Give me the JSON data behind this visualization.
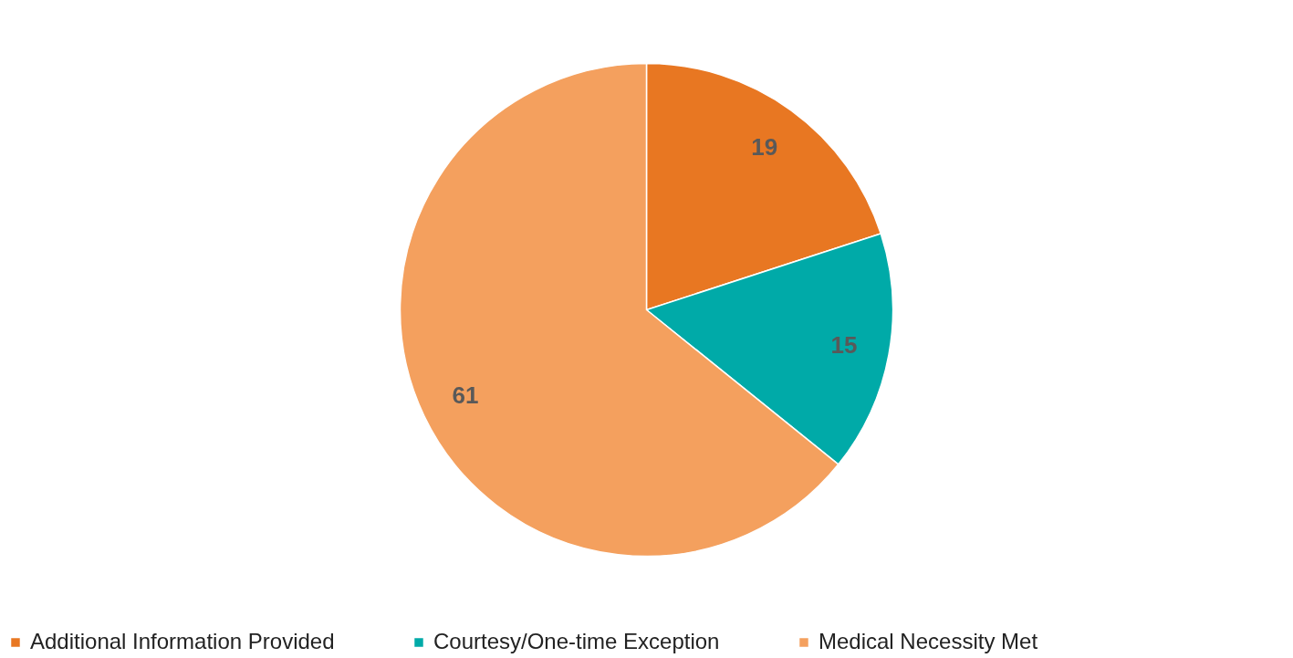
{
  "chart_data": {
    "type": "pie",
    "categories": [
      "Additional Information Provided",
      "Courtesy/One-time Exception",
      "Medical Necessity Met"
    ],
    "values": [
      19,
      15,
      61
    ],
    "colors": [
      "#e87722",
      "#00aaa8",
      "#f4a05e"
    ],
    "data_labels": true,
    "legend": "bottom"
  }
}
